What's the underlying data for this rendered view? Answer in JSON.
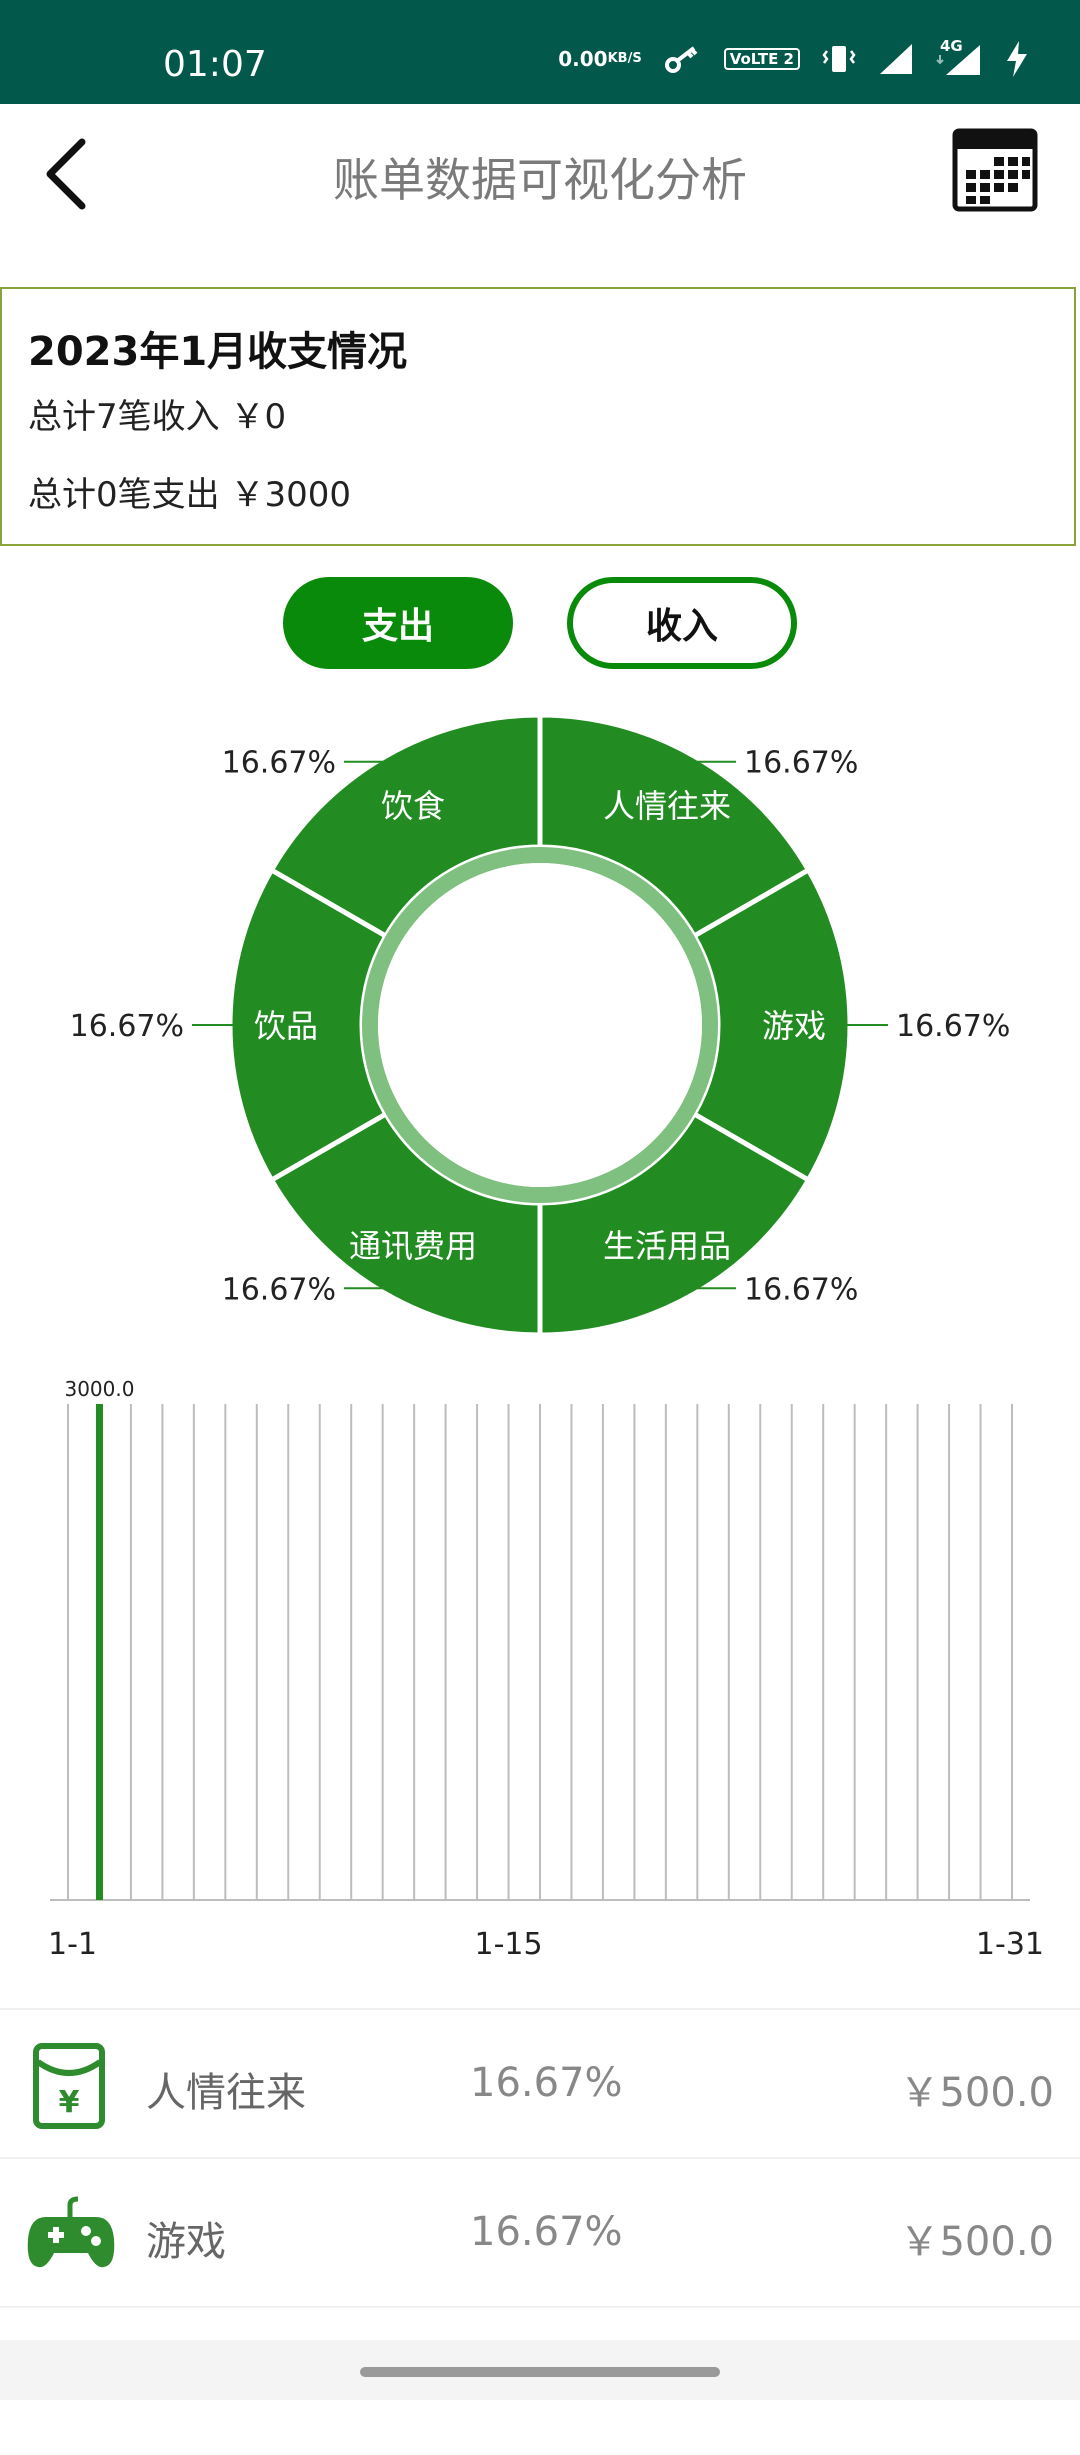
{
  "status_bar": {
    "time": "01:07",
    "net_speed_value": "0.00",
    "net_speed_unit": "KB/S",
    "volte_label": "VoLTE 2",
    "network_label": "4G",
    "icons": [
      "key-icon",
      "volte-icon",
      "vibrate-icon",
      "signal-icon",
      "signal-4g-icon",
      "charging-icon"
    ]
  },
  "header": {
    "title": "账单数据可视化分析",
    "back_icon": "chevron-left-icon",
    "calendar_icon": "calendar-icon"
  },
  "summary": {
    "title": "2023年1月收支情况",
    "income_line": "总计7笔收入 ￥0",
    "expense_line": "总计0笔支出 ￥3000"
  },
  "toggle": {
    "expense_label": "支出",
    "income_label": "收入",
    "selected": "支出"
  },
  "colors": {
    "status_bar": "#02584a",
    "accent": "#0a8a0a",
    "donut": "#228b22",
    "donut_inner": "#7fbf7f",
    "summary_border": "#8aa23a"
  },
  "chart_data": [
    {
      "type": "pie",
      "categories": [
        "人情往来",
        "游戏",
        "生活用品",
        "通讯费用",
        "饮品",
        "饮食"
      ],
      "values": [
        16.67,
        16.67,
        16.67,
        16.67,
        16.67,
        16.67
      ],
      "labels": [
        "16.67%",
        "16.67%",
        "16.67%",
        "16.67%",
        "16.67%",
        "16.67%"
      ],
      "title": ""
    },
    {
      "type": "bar",
      "x_ticks": [
        "1-1",
        "1-15",
        "1-31"
      ],
      "days": 31,
      "values": [
        0,
        3000,
        0,
        0,
        0,
        0,
        0,
        0,
        0,
        0,
        0,
        0,
        0,
        0,
        0,
        0,
        0,
        0,
        0,
        0,
        0,
        0,
        0,
        0,
        0,
        0,
        0,
        0,
        0,
        0,
        0
      ],
      "value_labels": [
        "",
        "3000.0",
        "",
        "",
        "",
        "",
        "",
        "",
        "",
        "",
        "",
        "",
        "",
        "",
        "",
        "",
        "",
        "",
        "",
        "",
        "",
        "",
        "",
        "",
        "",
        "",
        "",
        "",
        "",
        "",
        ""
      ],
      "ylim": [
        0,
        3000
      ],
      "title": "",
      "xlabel": "",
      "ylabel": ""
    }
  ],
  "list": [
    {
      "name": "人情往来",
      "pct": "16.67%",
      "amount": "￥500.0",
      "icon": "red-envelope-icon"
    },
    {
      "name": "游戏",
      "pct": "16.67%",
      "amount": "￥500.0",
      "icon": "gamepad-icon"
    }
  ]
}
